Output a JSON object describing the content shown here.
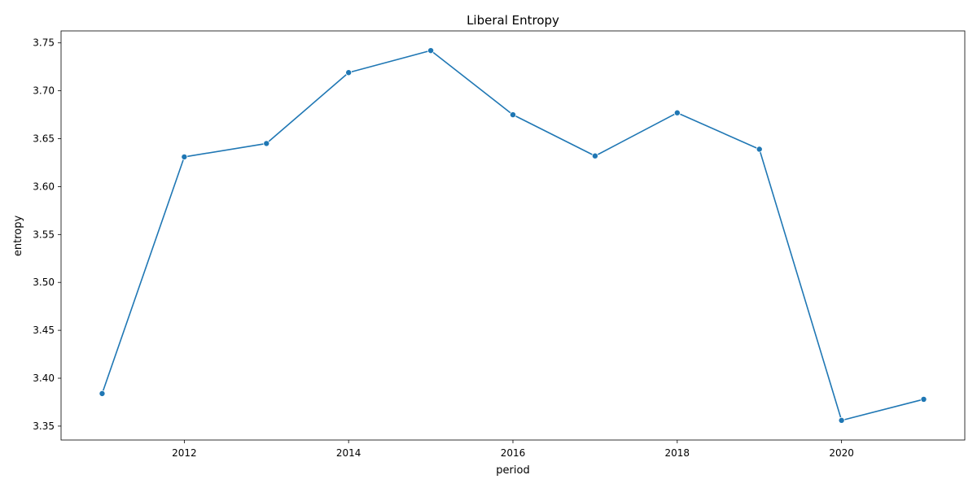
{
  "chart_data": {
    "type": "line",
    "title": "Liberal Entropy",
    "xlabel": "period",
    "ylabel": "entropy",
    "xlim": [
      2010.5,
      2021.5
    ],
    "ylim": [
      3.3355,
      3.7625
    ],
    "x_ticks": [
      2012,
      2014,
      2016,
      2018,
      2020
    ],
    "x_tick_labels": [
      "2012",
      "2014",
      "2016",
      "2018",
      "2020"
    ],
    "y_ticks": [
      3.35,
      3.4,
      3.45,
      3.5,
      3.55,
      3.6,
      3.65,
      3.7,
      3.75
    ],
    "y_tick_labels": [
      "3.35",
      "3.40",
      "3.45",
      "3.50",
      "3.55",
      "3.60",
      "3.65",
      "3.70",
      "3.75"
    ],
    "grid": false,
    "series": [
      {
        "color": "#1f77b4",
        "marker": "circle",
        "x": [
          2011,
          2012,
          2013,
          2014,
          2015,
          2016,
          2017,
          2018,
          2019,
          2020,
          2021
        ],
        "y": [
          3.384,
          3.631,
          3.645,
          3.719,
          3.742,
          3.675,
          3.632,
          3.677,
          3.639,
          3.356,
          3.378
        ]
      }
    ]
  }
}
